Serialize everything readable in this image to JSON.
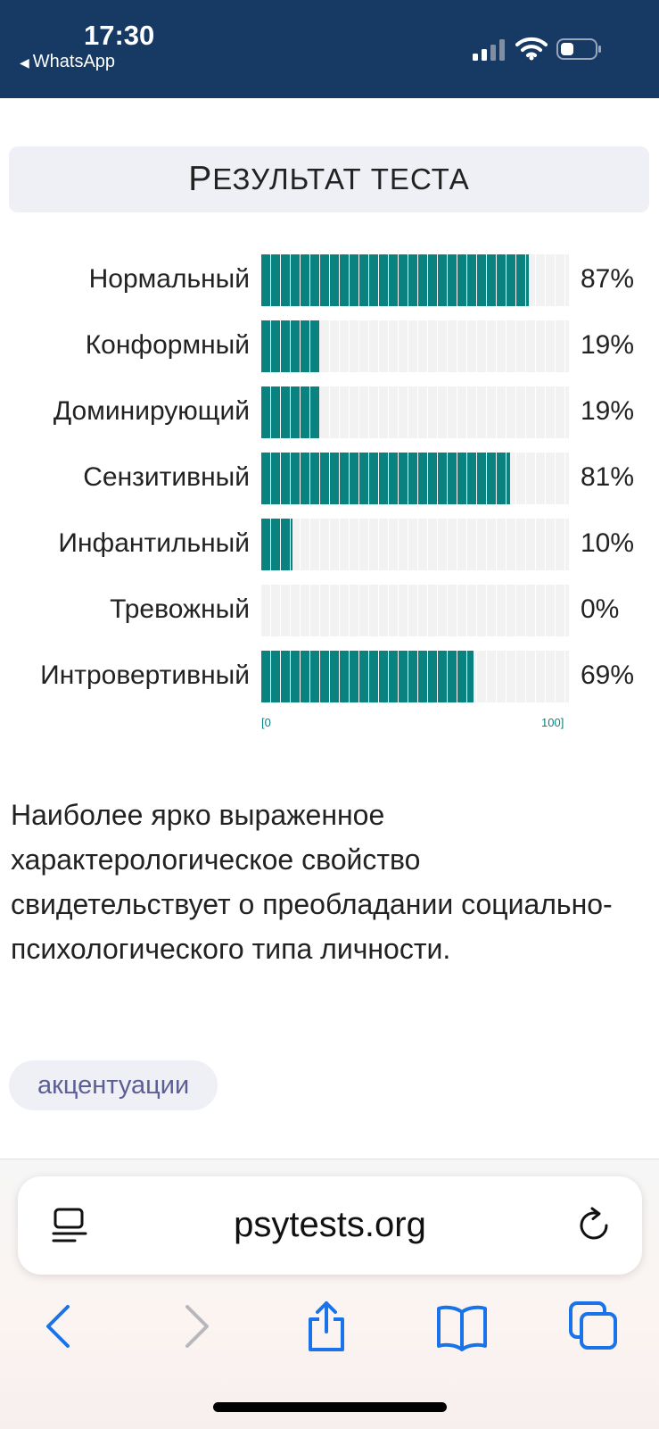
{
  "status_bar": {
    "time": "17:30",
    "back_app": "WhatsApp"
  },
  "test": {
    "title_first": "Р",
    "title_rest": "езультат теста",
    "axis_min_label": "[0",
    "axis_max_label": "100]"
  },
  "chart_data": {
    "type": "bar",
    "orientation": "horizontal",
    "categories": [
      "Нормальный",
      "Конформный",
      "Доминирующий",
      "Сензитивный",
      "Инфантильный",
      "Тревожный",
      "Интровертивный"
    ],
    "values": [
      87,
      19,
      19,
      81,
      10,
      0,
      69
    ],
    "value_labels": [
      "87%",
      "19%",
      "19%",
      "81%",
      "10%",
      "0%",
      "69%"
    ],
    "xlim": [
      0,
      100
    ],
    "bar_color": "#0a827f",
    "track_color": "#f2f2f2"
  },
  "description": "Наиболее ярко выраженное характерологическое свойство свидетельствует о преобладании социально-психологического типа личности.",
  "tag": "акцентуации",
  "browser": {
    "url": "psytests.org",
    "icons": [
      "reader-icon",
      "reload-icon",
      "back-icon",
      "forward-icon",
      "share-icon",
      "bookmarks-icon",
      "tabs-icon"
    ]
  },
  "colors": {
    "status_bg": "#173a64",
    "accent": "#0a827f",
    "ios_blue": "#1a73e8"
  }
}
